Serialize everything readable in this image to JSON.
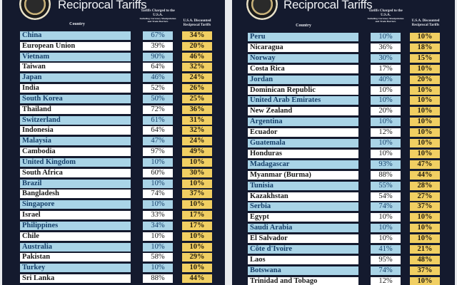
{
  "title": "Reciprocal Tariffs",
  "headers": {
    "country": "Country",
    "tariffs_charged": "Tariffs Charged to the U.S.A.",
    "tariffs_charged_sub": "Including Currency Manipulation and Trade Barriers",
    "discounted": "U.S.A. Discounted Reciprocal Tariffs"
  },
  "colors": {
    "background": "#141a2e",
    "row_blue": "#a9d4e7",
    "row_white": "#ffffff",
    "discount_yellow": "#f1cf62"
  },
  "icons": {
    "seal": "presidential-seal"
  },
  "panels": [
    {
      "rows": [
        {
          "country": "China",
          "charged": "67%",
          "discounted": "34%"
        },
        {
          "country": "European Union",
          "charged": "39%",
          "discounted": "20%"
        },
        {
          "country": "Vietnam",
          "charged": "90%",
          "discounted": "46%"
        },
        {
          "country": "Taiwan",
          "charged": "64%",
          "discounted": "32%"
        },
        {
          "country": "Japan",
          "charged": "46%",
          "discounted": "24%"
        },
        {
          "country": "India",
          "charged": "52%",
          "discounted": "26%"
        },
        {
          "country": "South Korea",
          "charged": "50%",
          "discounted": "25%"
        },
        {
          "country": "Thailand",
          "charged": "72%",
          "discounted": "36%"
        },
        {
          "country": "Switzerland",
          "charged": "61%",
          "discounted": "31%"
        },
        {
          "country": "Indonesia",
          "charged": "64%",
          "discounted": "32%"
        },
        {
          "country": "Malaysia",
          "charged": "47%",
          "discounted": "24%"
        },
        {
          "country": "Cambodia",
          "charged": "97%",
          "discounted": "49%"
        },
        {
          "country": "United Kingdom",
          "charged": "10%",
          "discounted": "10%"
        },
        {
          "country": "South Africa",
          "charged": "60%",
          "discounted": "30%"
        },
        {
          "country": "Brazil",
          "charged": "10%",
          "discounted": "10%"
        },
        {
          "country": "Bangladesh",
          "charged": "74%",
          "discounted": "37%"
        },
        {
          "country": "Singapore",
          "charged": "10%",
          "discounted": "10%"
        },
        {
          "country": "Israel",
          "charged": "33%",
          "discounted": "17%"
        },
        {
          "country": "Philippines",
          "charged": "34%",
          "discounted": "17%"
        },
        {
          "country": "Chile",
          "charged": "10%",
          "discounted": "10%"
        },
        {
          "country": "Australia",
          "charged": "10%",
          "discounted": "10%"
        },
        {
          "country": "Pakistan",
          "charged": "58%",
          "discounted": "29%"
        },
        {
          "country": "Turkey",
          "charged": "10%",
          "discounted": "10%"
        },
        {
          "country": "Sri Lanka",
          "charged": "88%",
          "discounted": "44%"
        }
      ]
    },
    {
      "rows": [
        {
          "country": "Peru",
          "charged": "10%",
          "discounted": "10%"
        },
        {
          "country": "Nicaragua",
          "charged": "36%",
          "discounted": "18%"
        },
        {
          "country": "Norway",
          "charged": "30%",
          "discounted": "15%"
        },
        {
          "country": "Costa Rica",
          "charged": "17%",
          "discounted": "10%"
        },
        {
          "country": "Jordan",
          "charged": "40%",
          "discounted": "20%"
        },
        {
          "country": "Dominican Republic",
          "charged": "10%",
          "discounted": "10%"
        },
        {
          "country": "United Arab Emirates",
          "charged": "10%",
          "discounted": "10%"
        },
        {
          "country": "New Zealand",
          "charged": "20%",
          "discounted": "10%"
        },
        {
          "country": "Argentina",
          "charged": "10%",
          "discounted": "10%"
        },
        {
          "country": "Ecuador",
          "charged": "12%",
          "discounted": "10%"
        },
        {
          "country": "Guatemala",
          "charged": "10%",
          "discounted": "10%"
        },
        {
          "country": "Honduras",
          "charged": "10%",
          "discounted": "10%"
        },
        {
          "country": "Madagascar",
          "charged": "93%",
          "discounted": "47%"
        },
        {
          "country": "Myanmar (Burma)",
          "charged": "88%",
          "discounted": "44%"
        },
        {
          "country": "Tunisia",
          "charged": "55%",
          "discounted": "28%"
        },
        {
          "country": "Kazakhstan",
          "charged": "54%",
          "discounted": "27%"
        },
        {
          "country": "Serbia",
          "charged": "74%",
          "discounted": "37%"
        },
        {
          "country": "Egypt",
          "charged": "10%",
          "discounted": "10%"
        },
        {
          "country": "Saudi Arabia",
          "charged": "10%",
          "discounted": "10%"
        },
        {
          "country": "El Salvador",
          "charged": "10%",
          "discounted": "10%"
        },
        {
          "country": "Côte d'Ivoire",
          "charged": "41%",
          "discounted": "21%"
        },
        {
          "country": "Laos",
          "charged": "95%",
          "discounted": "48%"
        },
        {
          "country": "Botswana",
          "charged": "74%",
          "discounted": "37%"
        },
        {
          "country": "Trinidad and Tobago",
          "charged": "12%",
          "discounted": "10%"
        }
      ]
    }
  ]
}
